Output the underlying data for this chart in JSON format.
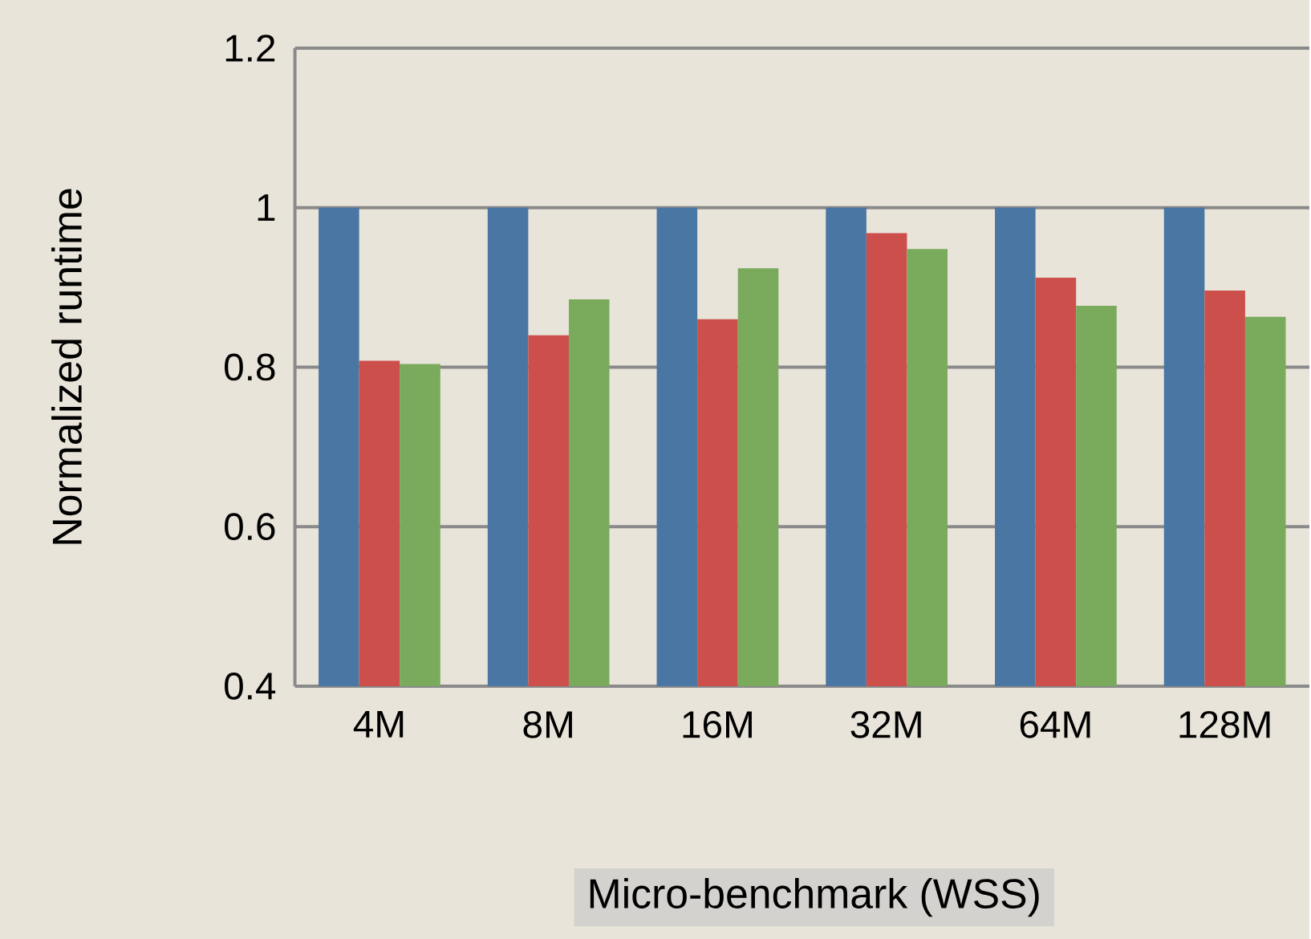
{
  "chart_data": {
    "type": "bar",
    "xlabel": "Micro-benchmark (WSS)",
    "ylabel": "Normalized runtime",
    "categories": [
      "4M",
      "8M",
      "16M",
      "32M",
      "64M",
      "128M"
    ],
    "series": [
      {
        "color": "#4a76a4",
        "values": [
          1,
          1,
          1,
          1,
          1,
          1
        ]
      },
      {
        "color": "#cc4f4c",
        "values": [
          0.808,
          0.84,
          0.86,
          0.968,
          0.912,
          0.896
        ]
      },
      {
        "color": "#7aab5c",
        "values": [
          0.804,
          0.885,
          0.924,
          0.948,
          0.877,
          0.863
        ]
      }
    ],
    "ylim": [
      0.4,
      1.2
    ],
    "yticks": [
      0.4,
      0.6,
      0.8,
      1,
      1.2
    ],
    "grid": "y"
  }
}
